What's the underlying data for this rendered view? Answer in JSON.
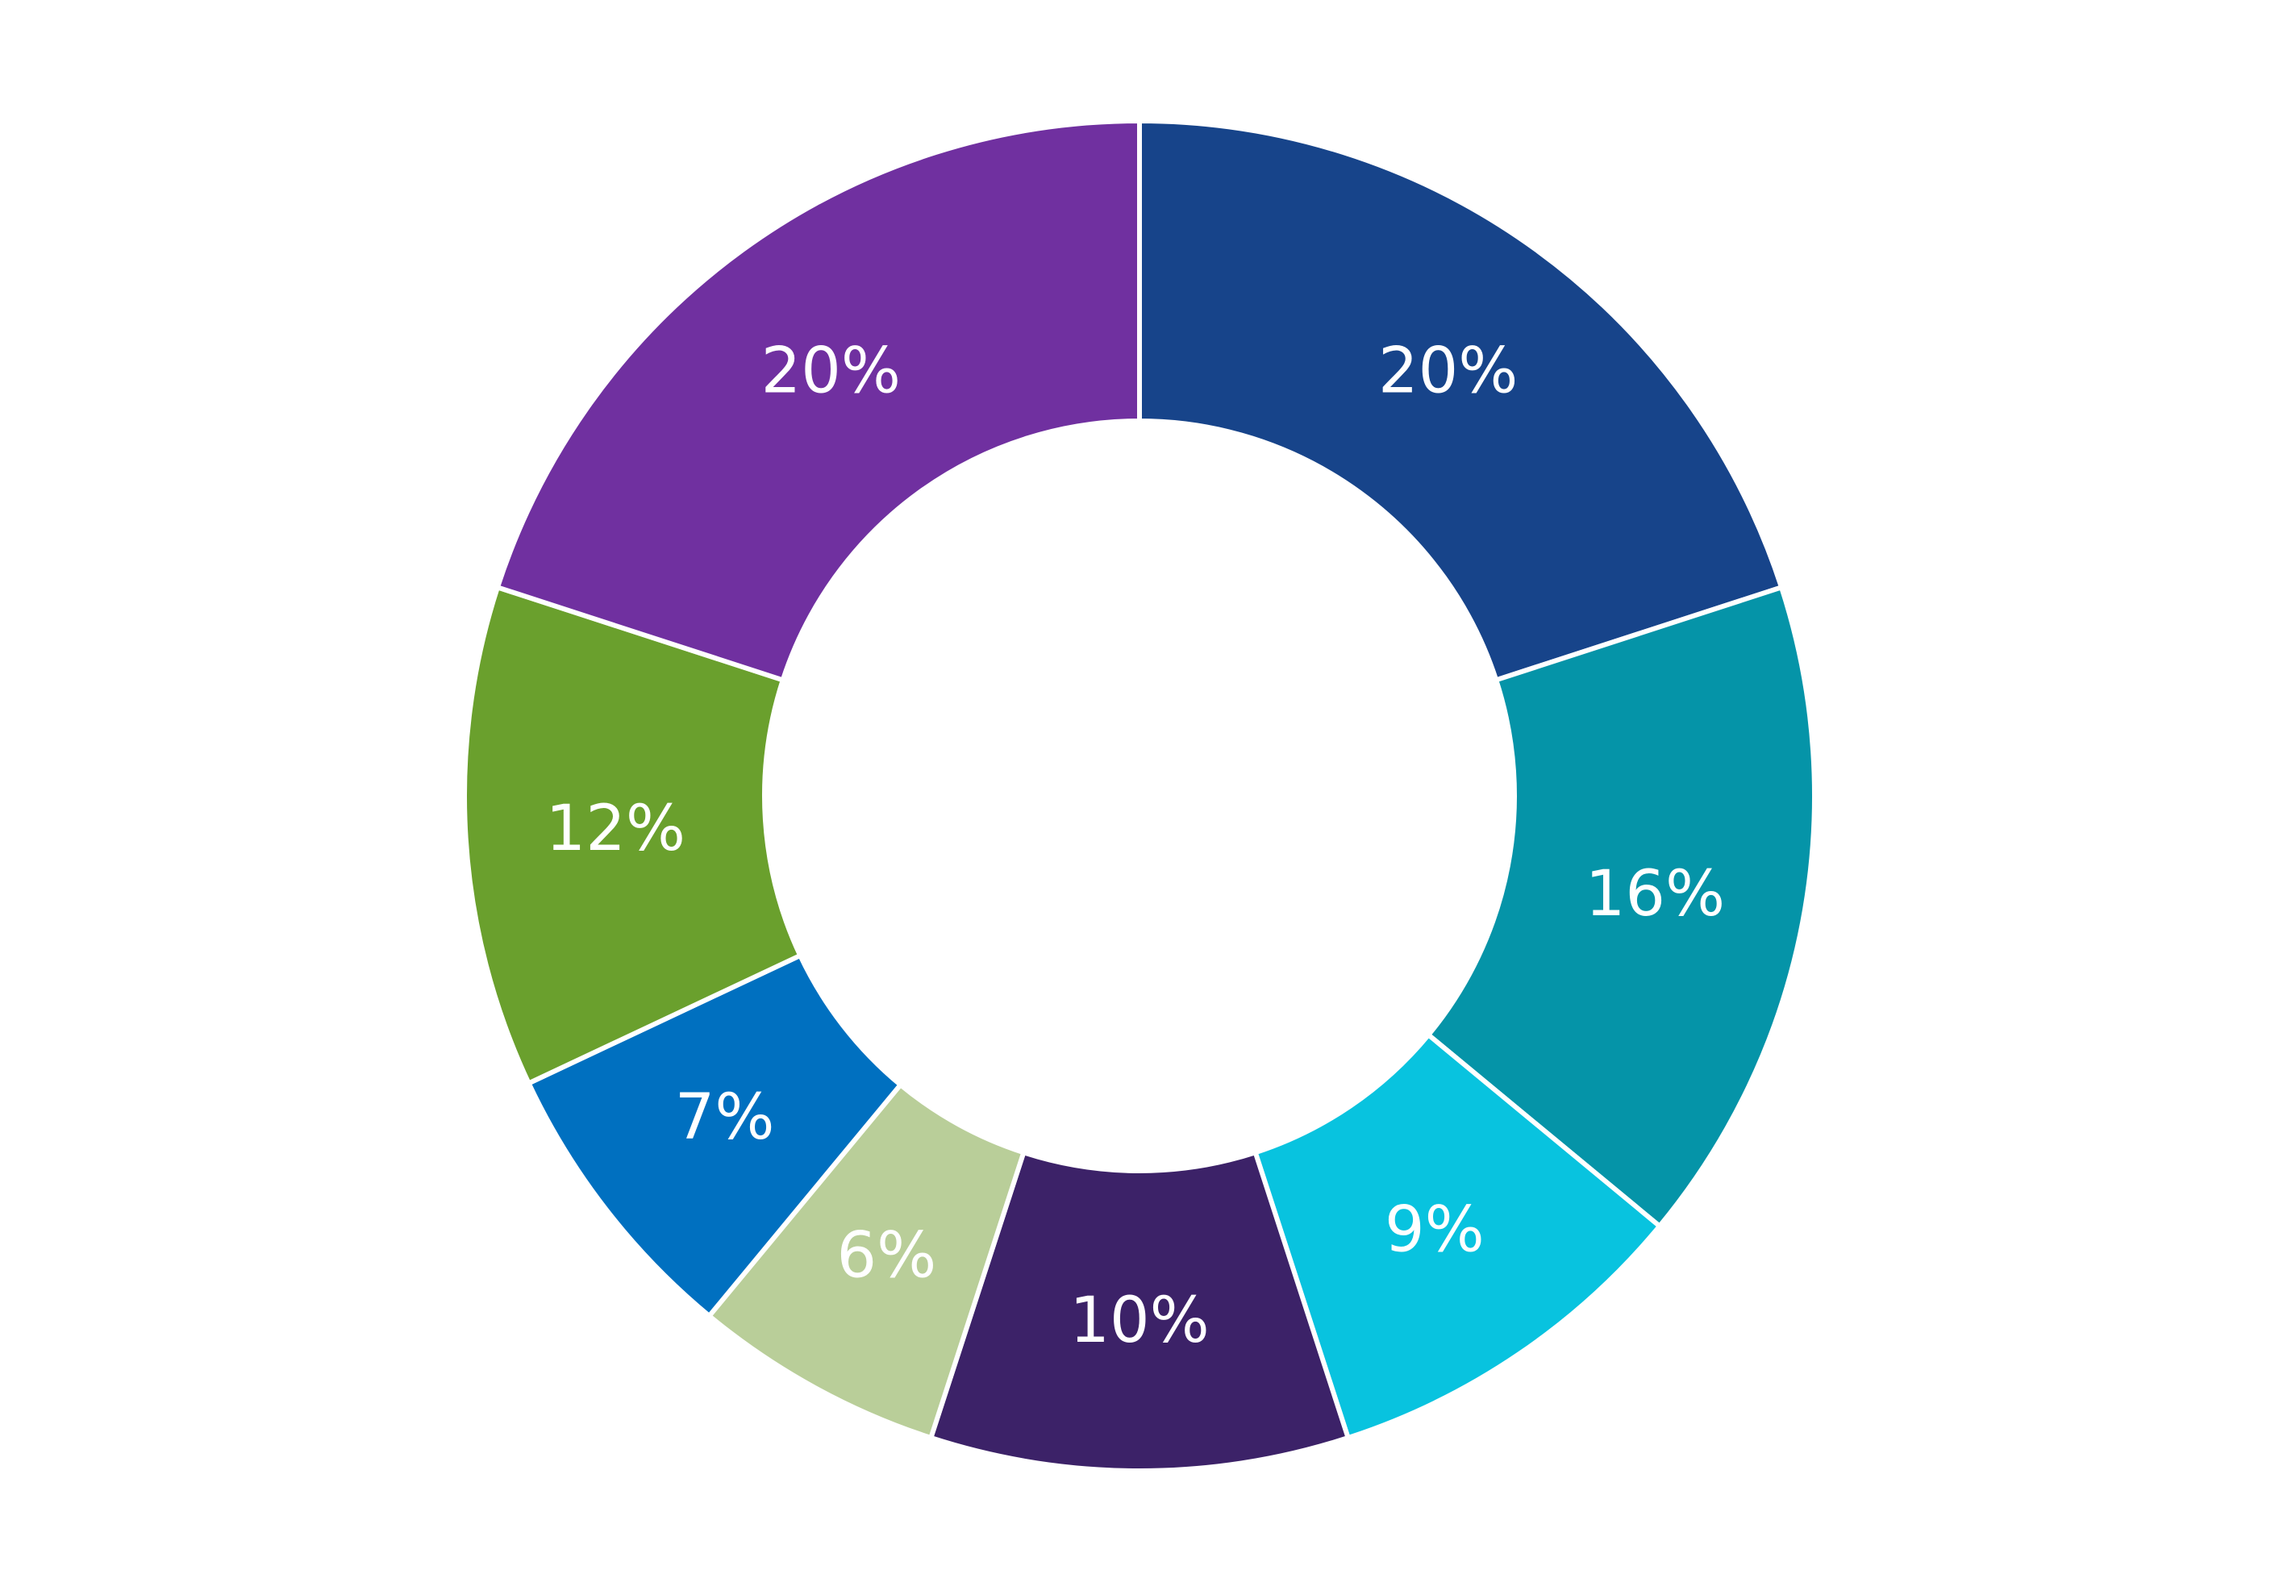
{
  "chart_data": {
    "type": "pie",
    "variant": "donut",
    "title": "",
    "slices": [
      {
        "value": 20,
        "label": "20%",
        "color": "#17448A"
      },
      {
        "value": 16,
        "label": "16%",
        "color": "#0594A8"
      },
      {
        "value": 9,
        "label": "9%",
        "color": "#08C3DF"
      },
      {
        "value": 10,
        "label": "10%",
        "color": "#3C2268"
      },
      {
        "value": 6,
        "label": "6%",
        "color": "#B9CE99"
      },
      {
        "value": 7,
        "label": "7%",
        "color": "#0070C0"
      },
      {
        "value": 12,
        "label": "12%",
        "color": "#6AA02D"
      },
      {
        "value": 20,
        "label": "20%",
        "color": "#7030A0"
      }
    ],
    "start_direction": "top",
    "direction": "clockwise",
    "legend": "none"
  }
}
